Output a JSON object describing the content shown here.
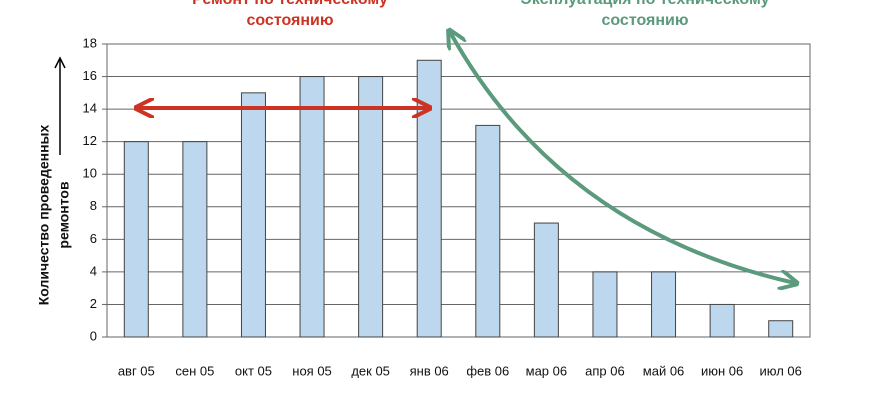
{
  "chart_data": {
    "type": "bar",
    "annotations": [
      {
        "lines": [
          "Ремонт по техническому",
          "состоянию"
        ],
        "color": "#cc3322"
      },
      {
        "lines": [
          "Эксплуатация по техническому",
          "состоянию"
        ],
        "color": "#5b9a7c"
      }
    ],
    "ylabel": [
      "Количество проведенных",
      "ремонтов"
    ],
    "categories": [
      "авг 05",
      "сен 05",
      "окт 05",
      "ноя 05",
      "дек 05",
      "янв 06",
      "фев 06",
      "мар 06",
      "апр 06",
      "май 06",
      "июн 06",
      "июл 06"
    ],
    "values": [
      12,
      12,
      15,
      16,
      16,
      17,
      13,
      7,
      4,
      4,
      2,
      1
    ],
    "color": "#bdd7ee",
    "ylim": [
      0,
      18
    ],
    "yticks": [
      0,
      2,
      4,
      6,
      8,
      10,
      12,
      14,
      16,
      18
    ],
    "grid": true
  }
}
